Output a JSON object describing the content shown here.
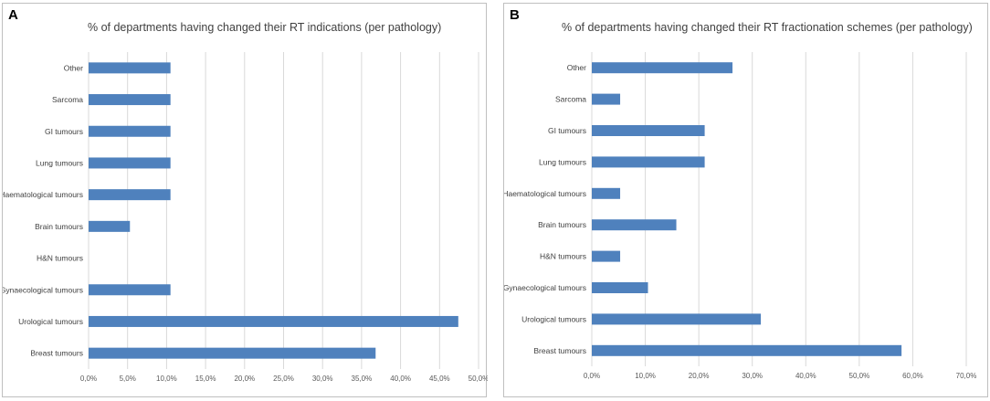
{
  "chart_data": [
    {
      "type": "bar",
      "orientation": "horizontal",
      "panel_label": "A",
      "title": "% of departments having changed their RT indications (per pathology)",
      "categories": [
        "Other",
        "Sarcoma",
        "GI tumours",
        "Lung tumours",
        "Haematological tumours",
        "Brain tumours",
        "H&N tumours",
        "Gynaecological tumours",
        "Urological tumours",
        "Breast tumours"
      ],
      "values": [
        10.5,
        10.5,
        10.5,
        10.5,
        10.5,
        5.3,
        0,
        10.5,
        47.4,
        36.8
      ],
      "xlim": [
        0,
        50
      ],
      "ticks": [
        0,
        5,
        10,
        15,
        20,
        25,
        30,
        35,
        40,
        45,
        50
      ],
      "tick_labels": [
        "0,0%",
        "5,0%",
        "10,0%",
        "15,0%",
        "20,0%",
        "25,0%",
        "30,0%",
        "35,0%",
        "40,0%",
        "45,0%",
        "50,0%"
      ],
      "bar_color": "#4f81bd",
      "grid": true
    },
    {
      "type": "bar",
      "orientation": "horizontal",
      "panel_label": "B",
      "title": "% of departments having changed their RT fractionation schemes (per pathology)",
      "categories": [
        "Other",
        "Sarcoma",
        "GI tumours",
        "Lung tumours",
        "Haematological tumours",
        "Brain tumours",
        "H&N tumours",
        "Gynaecological tumours",
        "Urological tumours",
        "Breast tumours"
      ],
      "values": [
        26.3,
        5.3,
        21.1,
        21.1,
        5.3,
        15.8,
        5.3,
        10.5,
        31.6,
        57.9
      ],
      "xlim": [
        0,
        70
      ],
      "ticks": [
        0,
        10,
        20,
        30,
        40,
        50,
        60,
        70
      ],
      "tick_labels": [
        "0,0%",
        "10,0%",
        "20,0%",
        "30,0%",
        "40,0%",
        "50,0%",
        "60,0%",
        "70,0%"
      ],
      "bar_color": "#4f81bd",
      "grid": true
    }
  ]
}
